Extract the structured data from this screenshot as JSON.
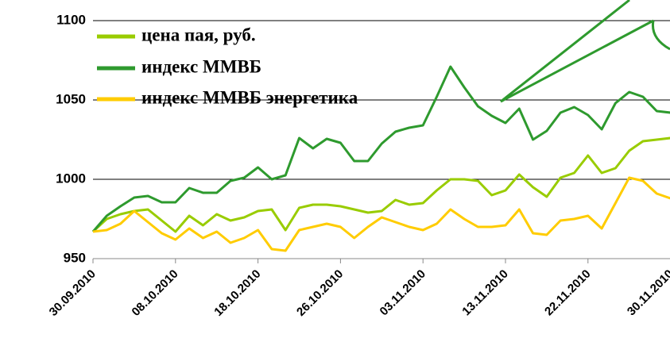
{
  "chart_data": {
    "type": "line",
    "categories": [
      "30.09.2010",
      null,
      null,
      null,
      null,
      null,
      "08.10.2010",
      null,
      null,
      null,
      null,
      null,
      "18.10.2010",
      null,
      null,
      null,
      null,
      null,
      "26.10.2010",
      null,
      null,
      null,
      null,
      null,
      "03.11.2010",
      null,
      null,
      null,
      null,
      null,
      "13.11.2010",
      null,
      null,
      null,
      null,
      null,
      "22.11.2010",
      null,
      null,
      null,
      null,
      null,
      "30.11.2010"
    ],
    "series": [
      {
        "name": "цена пая, руб.",
        "color": "#99cc00",
        "values": [
          967,
          975,
          978,
          980,
          981,
          974,
          967,
          977,
          971,
          978,
          974,
          976,
          980,
          981,
          968,
          982,
          984,
          984,
          983,
          981,
          979,
          980,
          987,
          984,
          985,
          993,
          1000,
          1000,
          999,
          990,
          993,
          1003,
          995,
          989,
          1001,
          1004,
          1015,
          1004,
          1007,
          1018,
          1024,
          1025,
          1026
        ]
      },
      {
        "name": "индекс ММВБ",
        "color": "#2e9a2e",
        "values": [
          967,
          977,
          983,
          988.5,
          989.5,
          985.5,
          985.5,
          994.5,
          991.5,
          991.5,
          999,
          1001,
          1007.5,
          1000,
          1002.5,
          1026,
          1019.5,
          1025.5,
          1023,
          1011.5,
          1011.5,
          1022.5,
          1030,
          1032.5,
          1034,
          1052,
          1071,
          1058,
          1046,
          1040,
          1035.5,
          1044.5,
          1025,
          1030.5,
          1042,
          1045.5,
          1040.5,
          1031.5,
          1048,
          1055,
          1052,
          1043,
          1042
        ]
      },
      {
        "name": "индекс ММВБ энергетика",
        "color": "#ffcc00",
        "values": [
          967,
          968,
          972,
          980,
          973,
          966,
          962,
          969,
          963,
          967,
          960,
          963,
          968,
          956,
          955,
          968,
          970,
          972,
          970,
          963,
          970,
          976,
          973,
          970,
          968,
          972,
          981,
          975,
          970,
          970,
          971,
          981,
          966,
          965,
          974,
          975,
          977,
          969,
          985,
          1001,
          999,
          991,
          988
        ]
      }
    ],
    "ylim": [
      950,
      1100
    ],
    "yticks": [
      950,
      1000,
      1050,
      1100
    ],
    "grid": true
  }
}
